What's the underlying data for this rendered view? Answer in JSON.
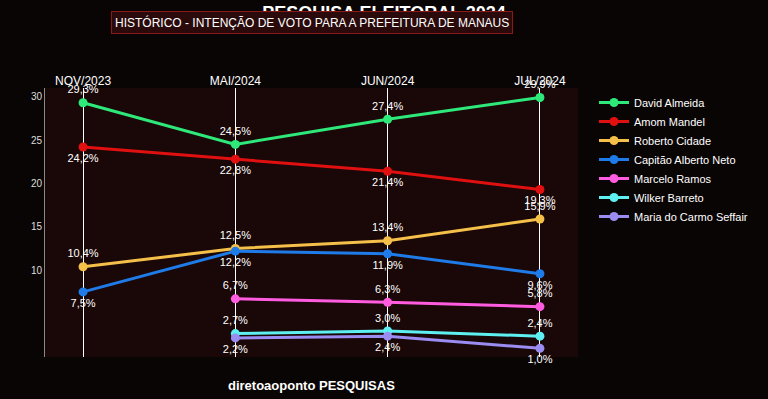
{
  "chart_data": {
    "type": "line",
    "title": "PESQUISA ELEITORAL 2024",
    "subtitle": "HISTÓRICO - INTENÇÃO DE VOTO PARA A PREFEITURA DE MANAUS",
    "source": "diretoaoponto PESQUISAS",
    "categories": [
      "NOV/2023",
      "MAI/2024",
      "JUN/2024",
      "JUL/2024"
    ],
    "ylim": [
      0,
      31
    ],
    "yticks": [
      10,
      15,
      20,
      25,
      30
    ],
    "grid": true,
    "legend": "right",
    "data_labels": true,
    "marker": "circle",
    "series": [
      {
        "name": "David Almeida",
        "color": "#2ee87a",
        "values": [
          29.3,
          24.5,
          27.4,
          29.9
        ],
        "value_labels": [
          "29,3%",
          "24,5%",
          "27,4%",
          "29,9%"
        ]
      },
      {
        "name": "Amom Mandel",
        "color": "#e01010",
        "values": [
          24.2,
          22.8,
          21.4,
          19.3
        ],
        "value_labels": [
          "24,2%",
          "22,8%",
          "21,4%",
          "19,3%"
        ]
      },
      {
        "name": "Roberto Cidade",
        "color": "#f5c04a",
        "values": [
          10.4,
          12.5,
          13.4,
          15.9
        ],
        "value_labels": [
          "10,4%",
          "12,5%",
          "13,4%",
          "15,9%"
        ]
      },
      {
        "name": "Capitão Alberto Neto",
        "color": "#1e7be8",
        "values": [
          7.5,
          12.2,
          11.9,
          9.6
        ],
        "value_labels": [
          "7,5%",
          "12,2%",
          "11,9%",
          "9,6%"
        ]
      },
      {
        "name": "Marcelo Ramos",
        "color": "#ff5ce0",
        "values": [
          null,
          6.7,
          6.3,
          5.8
        ],
        "value_labels": [
          null,
          "6,7%",
          "6,3%",
          "5,8%"
        ]
      },
      {
        "name": "Wilker Barreto",
        "color": "#5ef0f0",
        "values": [
          null,
          2.7,
          3.0,
          2.4
        ],
        "value_labels": [
          null,
          "2,7%",
          "3,0%",
          "2,4%"
        ]
      },
      {
        "name": "Maria do Carmo Seffair",
        "color": "#9a8cf0",
        "values": [
          null,
          2.2,
          2.4,
          1.0
        ],
        "value_labels": [
          null,
          "2,2%",
          "2,4%",
          "1,0%"
        ]
      }
    ]
  }
}
